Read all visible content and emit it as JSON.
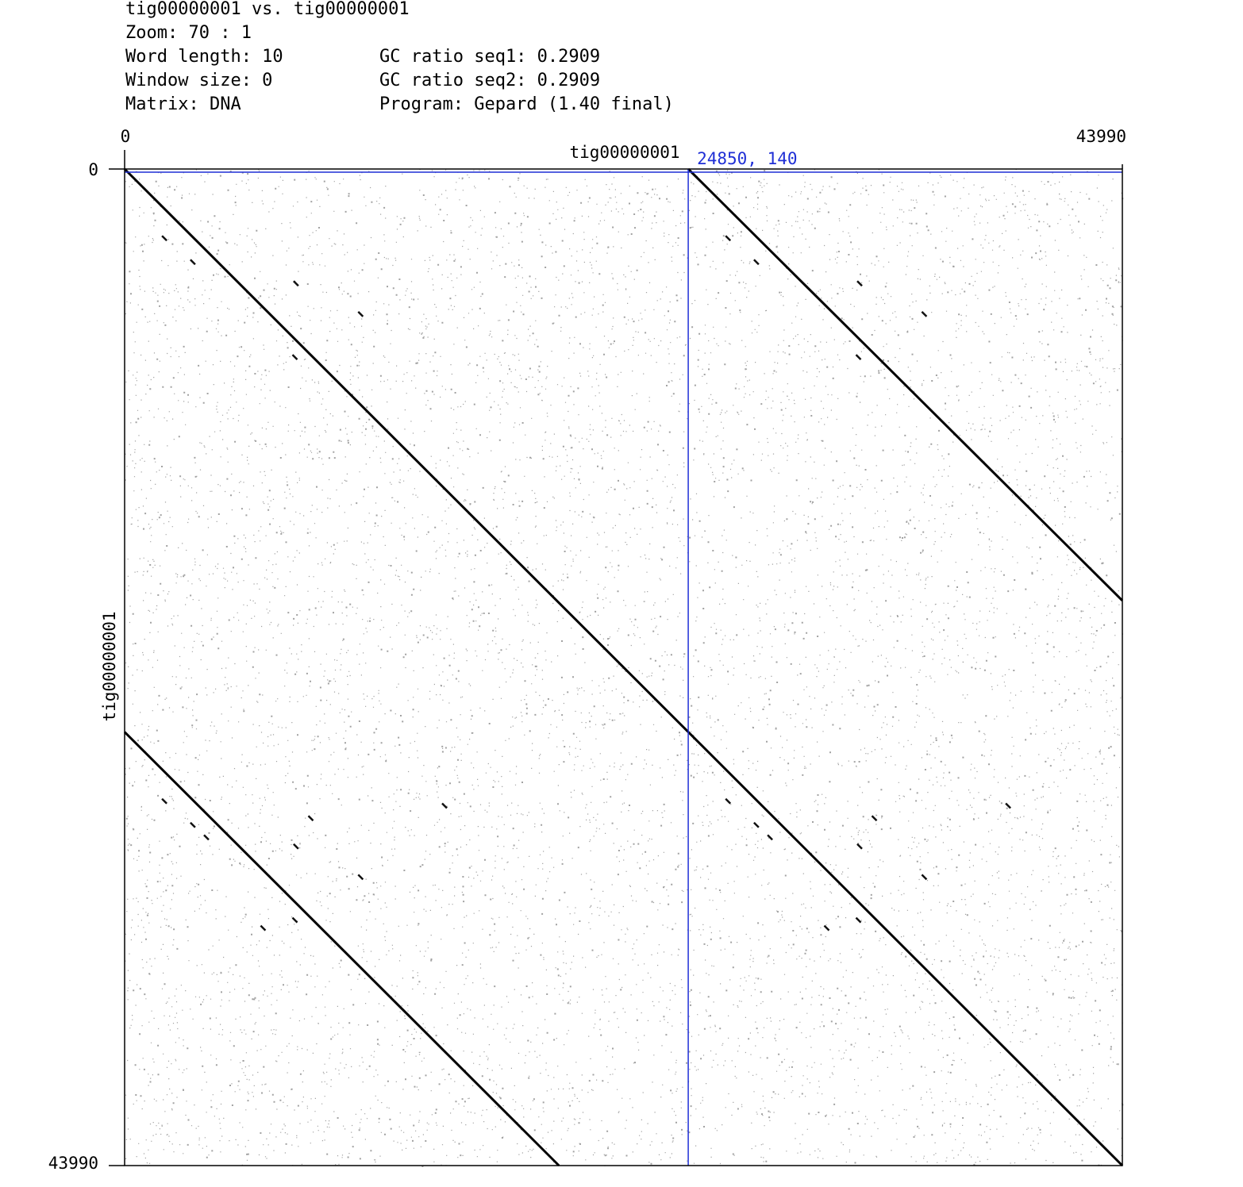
{
  "header": {
    "title": "tig00000001 vs. tig00000001",
    "zoom": "Zoom: 70 : 1",
    "word_length": "Word length: 10",
    "window_size": "Window size: 0",
    "matrix": "Matrix: DNA",
    "gc_seq1": "GC ratio seq1: 0.2909",
    "gc_seq2": "GC ratio seq2: 0.2909",
    "program": "Program: Gepard (1.40 final)"
  },
  "colors": {
    "cursor": "#1f2fd6",
    "diagonal": "#000000",
    "noise": "#555555"
  },
  "chart_data": {
    "type": "scatter",
    "xlabel": "tig00000001",
    "ylabel": "tig00000001",
    "xlim": [
      0,
      43990
    ],
    "ylim": [
      0,
      43990
    ],
    "x_tick_labels": [
      "0",
      "43990"
    ],
    "y_tick_labels": [
      "0",
      "43990"
    ],
    "y_inverted": true,
    "cursor": {
      "x": 24850,
      "y": 140,
      "label": "24850, 140"
    },
    "series": [
      {
        "x_start": 0,
        "y_start": 0,
        "x_end": 43990,
        "y_end": 43990
      },
      {
        "x_start": 24850,
        "y_start": 0,
        "x_end": 43990,
        "y_end": 19050
      },
      {
        "x_start": 0,
        "y_start": 24850,
        "x_end": 19150,
        "y_end": 43990
      }
    ]
  }
}
